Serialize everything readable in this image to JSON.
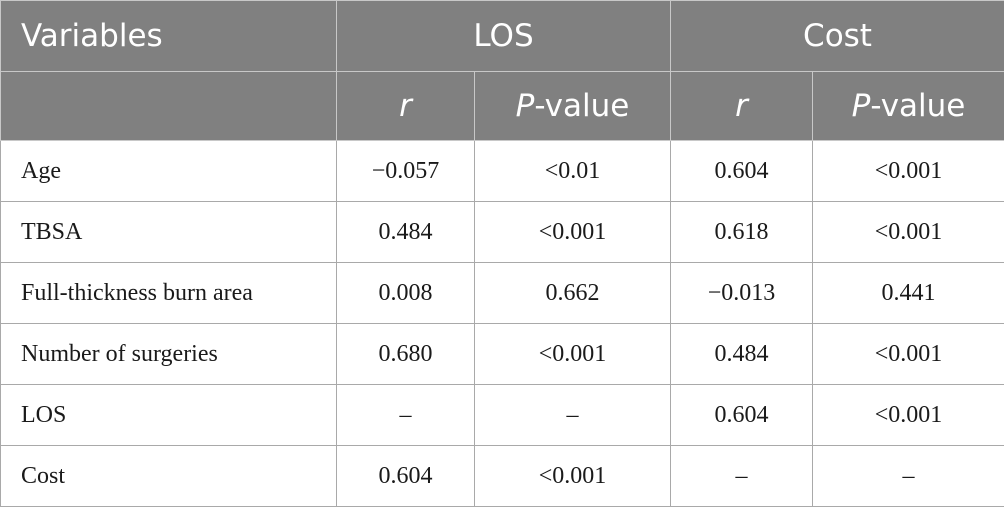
{
  "header": {
    "variables": "Variables",
    "los": "LOS",
    "cost": "Cost",
    "r": "r",
    "p_italic": "P",
    "p_suffix": "-value"
  },
  "rows": [
    {
      "label": "Age",
      "los_r": "−0.057",
      "los_p": "<0.01",
      "cost_r": "0.604",
      "cost_p": "<0.001"
    },
    {
      "label": "TBSA",
      "los_r": "0.484",
      "los_p": "<0.001",
      "cost_r": "0.618",
      "cost_p": "<0.001"
    },
    {
      "label": "Full-thickness burn area",
      "los_r": "0.008",
      "los_p": "0.662",
      "cost_r": "−0.013",
      "cost_p": "0.441"
    },
    {
      "label": "Number of surgeries",
      "los_r": "0.680",
      "los_p": "<0.001",
      "cost_r": "0.484",
      "cost_p": "<0.001"
    },
    {
      "label": "LOS",
      "los_r": "–",
      "los_p": "–",
      "cost_r": "0.604",
      "cost_p": "<0.001"
    },
    {
      "label": "Cost",
      "los_r": "0.604",
      "los_p": "<0.001",
      "cost_r": "–",
      "cost_p": "–"
    }
  ]
}
